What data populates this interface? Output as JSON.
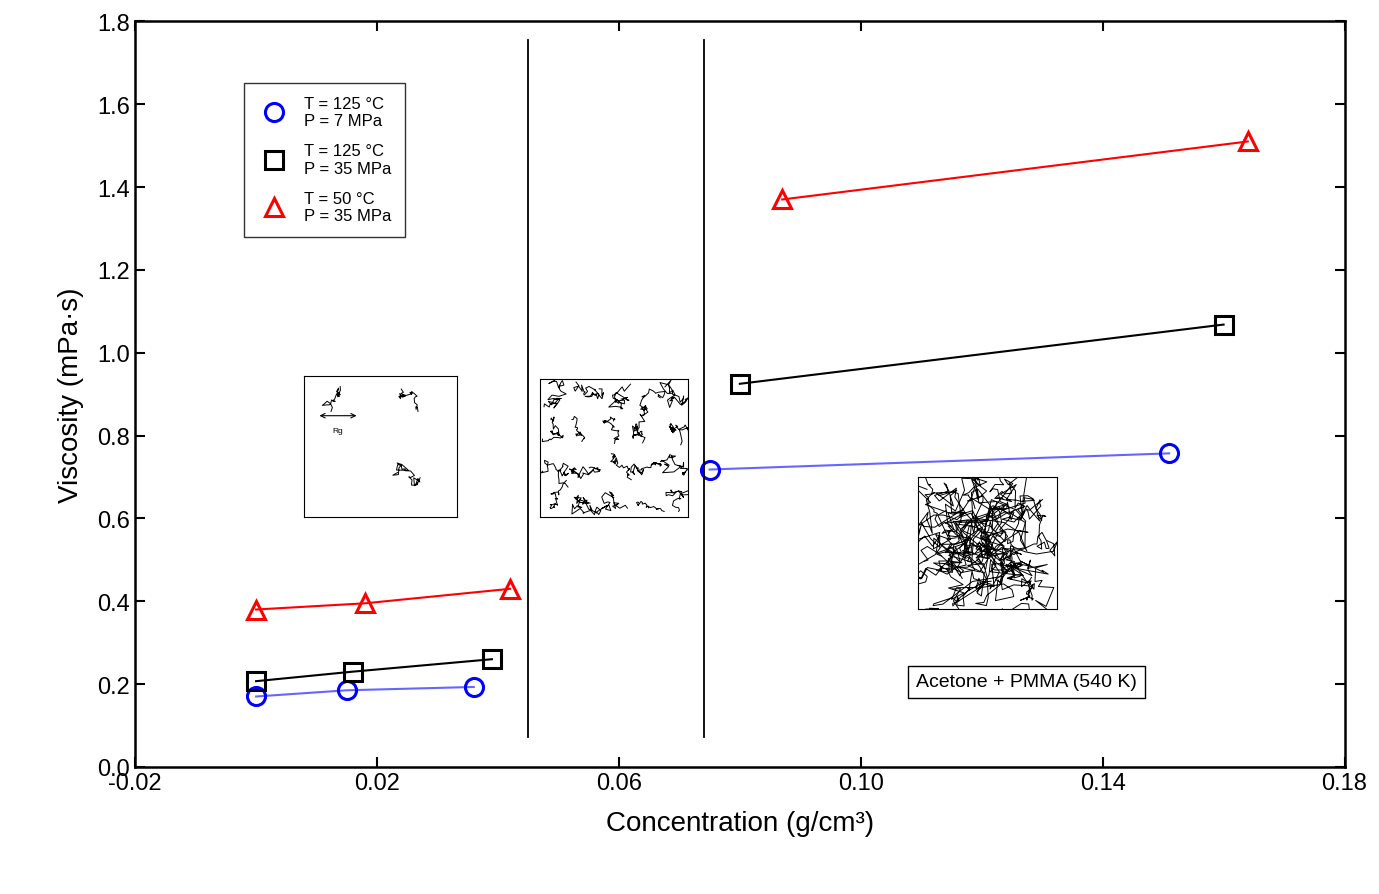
{
  "chart_data": {
    "type": "line",
    "xlabel": "Concentration (g/cm³)",
    "ylabel": "Viscosity (mPa·s)",
    "xlim": [
      -0.02,
      0.18
    ],
    "ylim": [
      0.0,
      1.8
    ],
    "xticks": [
      -0.02,
      0.02,
      0.06,
      {
        "value": 0.1,
        "label": "0.10"
      },
      0.14,
      0.18
    ],
    "yticks": [
      0.0,
      0.2,
      0.4,
      0.6,
      0.8,
      1.0,
      1.2,
      1.4,
      1.6,
      1.8
    ],
    "legend": "upper left",
    "regime_boundaries": [
      0.045,
      0.074
    ],
    "annotations": [
      "Rg",
      "Acetone + PMMA (540 K)"
    ],
    "series": [
      {
        "name": "T = 125 °C\nP = 7 MPa",
        "color": "#0000ff",
        "marker": "circle",
        "line_style": "solid",
        "x": [
          0.0,
          0.015,
          0.036,
          null,
          0.075,
          0.151
        ],
        "values": [
          0.17,
          0.185,
          0.193,
          null,
          0.718,
          0.757
        ]
      },
      {
        "name": "T = 125 °C\nP = 35 MPa",
        "color": "#000000",
        "marker": "square",
        "line_style": "solid",
        "x": [
          0.0,
          0.016,
          0.039,
          null,
          0.08,
          0.16
        ],
        "values": [
          0.207,
          0.23,
          0.26,
          null,
          0.925,
          1.068
        ]
      },
      {
        "name": "T = 50 °C\nP = 35 MPa",
        "color": "#ff0000",
        "marker": "triangle",
        "line_style": "solid",
        "x": [
          0.0,
          0.018,
          0.042,
          null,
          0.087,
          0.164
        ],
        "values": [
          0.38,
          0.395,
          0.43,
          null,
          1.37,
          1.51
        ]
      }
    ]
  }
}
